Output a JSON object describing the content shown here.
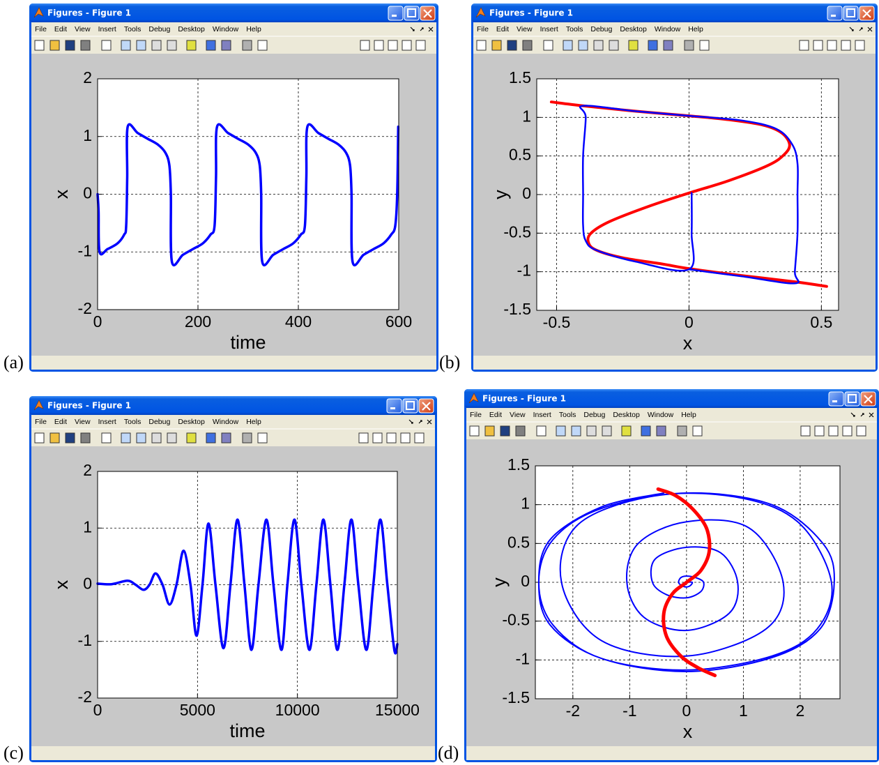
{
  "windows": [
    {
      "title": "Figures - Figure 1",
      "menu": [
        "File",
        "Edit",
        "View",
        "Insert",
        "Tools",
        "Debug",
        "Desktop",
        "Window",
        "Help"
      ],
      "label": "(a)"
    },
    {
      "title": "Figures - Figure 1",
      "menu": [
        "File",
        "Edit",
        "View",
        "Insert",
        "Tools",
        "Debug",
        "Desktop",
        "Window",
        "Help"
      ],
      "label": "(b)"
    },
    {
      "title": "Figures - Figure 1",
      "menu": [
        "File",
        "Edit",
        "View",
        "Insert",
        "Tools",
        "Debug",
        "Desktop",
        "Window",
        "Help"
      ],
      "label": "(c)"
    },
    {
      "title": "Figures - Figure 1",
      "menu": [
        "File",
        "Edit",
        "View",
        "Insert",
        "Tools",
        "Debug",
        "Desktop",
        "Window",
        "Help"
      ],
      "label": "(d)"
    }
  ],
  "chart_data": [
    {
      "type": "line",
      "xlabel": "time",
      "ylabel": "x",
      "x": [
        0,
        2,
        4,
        20,
        40,
        53,
        57,
        59,
        60,
        80,
        100,
        120,
        135,
        143,
        146,
        148,
        170,
        190,
        210,
        225,
        233,
        236,
        238,
        260,
        280,
        300,
        315,
        323,
        326,
        328,
        350,
        370,
        390,
        405,
        413,
        416,
        418,
        440,
        460,
        480,
        495,
        503,
        506,
        508,
        530,
        550,
        570,
        585,
        593,
        597,
        599
      ],
      "series": [
        {
          "color": "#0000ff",
          "linewidth": 3.5,
          "values": [
            0,
            -0.3,
            -1.0,
            -0.95,
            -0.85,
            -0.7,
            -0.55,
            0.3,
            1.17,
            1.06,
            0.96,
            0.86,
            0.72,
            0.5,
            0,
            -1.17,
            -1.05,
            -0.95,
            -0.85,
            -0.7,
            -0.55,
            0.3,
            1.17,
            1.06,
            0.96,
            0.86,
            0.72,
            0.5,
            0,
            -1.17,
            -1.05,
            -0.95,
            -0.85,
            -0.7,
            -0.55,
            0.3,
            1.17,
            1.06,
            0.96,
            0.86,
            0.72,
            0.5,
            0,
            -1.17,
            -1.05,
            -0.95,
            -0.85,
            -0.7,
            -0.55,
            0,
            1.17
          ]
        }
      ],
      "xlim": [
        0,
        600
      ],
      "ylim": [
        -2,
        2
      ],
      "xticks": [
        0,
        200,
        400,
        600
      ],
      "yticks": [
        -2,
        -1,
        0,
        1,
        2
      ],
      "grid": true
    },
    {
      "type": "line",
      "xlabel": "x",
      "ylabel": "y",
      "series": [
        {
          "color": "#ff0000",
          "linewidth": 4,
          "x": [
            -0.52,
            -0.4,
            -0.2,
            0,
            0.15,
            0.28,
            0.35,
            0.38,
            0.36,
            0.3,
            0.15,
            0,
            -0.15,
            -0.3,
            -0.37,
            -0.38,
            -0.35,
            -0.25,
            -0.1,
            0,
            0.2,
            0.4,
            0.52
          ],
          "values": [
            1.2,
            1.15,
            1.08,
            1.02,
            0.97,
            0.9,
            0.8,
            0.65,
            0.52,
            0.38,
            0.18,
            0.02,
            -0.15,
            -0.35,
            -0.5,
            -0.62,
            -0.72,
            -0.82,
            -0.9,
            -0.96,
            -1.05,
            -1.13,
            -1.19
          ]
        },
        {
          "color": "#0000ff",
          "linewidth": 2.5,
          "x": [
            0.01,
            0.01,
            0,
            -0.2,
            -0.35,
            -0.39,
            -0.4,
            -0.4,
            -0.4,
            -0.39,
            -0.4,
            -0.2,
            0,
            0.2,
            0.33,
            0.39,
            0.41,
            0.41,
            0.41,
            0.4,
            0.4,
            0.2,
            0
          ],
          "values": [
            0.02,
            -0.5,
            -0.97,
            -0.87,
            -0.72,
            -0.6,
            -0.4,
            0,
            0.5,
            1.0,
            1.15,
            1.08,
            1.02,
            0.96,
            0.85,
            0.65,
            0.4,
            0,
            -0.5,
            -1.0,
            -1.15,
            -1.06,
            -0.97
          ]
        }
      ],
      "xlim": [
        -0.575,
        0.565
      ],
      "ylim": [
        -1.5,
        1.5
      ],
      "xticks": [
        -0.5,
        0,
        0.5
      ],
      "yticks": [
        -1.5,
        -1,
        -0.5,
        0,
        0.5,
        1,
        1.5
      ],
      "grid": true
    },
    {
      "type": "line",
      "xlabel": "time",
      "ylabel": "x",
      "x": [
        0,
        700,
        1500,
        1900,
        2300,
        2600,
        2900,
        3250,
        3600,
        3950,
        4300,
        4650,
        4950,
        5250,
        5550,
        5900,
        6300,
        6650,
        7000,
        7350,
        7700,
        8050,
        8450,
        8800,
        9200,
        9500,
        9850,
        10200,
        10600,
        10950,
        11300,
        11650,
        12000,
        12350,
        12700,
        13050,
        13450,
        13800,
        14150,
        14500,
        14850,
        15000
      ],
      "series": [
        {
          "color": "#0000ff",
          "linewidth": 3.5,
          "values": [
            0.02,
            0.01,
            0.07,
            0,
            -0.09,
            0,
            0.2,
            0,
            -0.35,
            0,
            0.6,
            0,
            -0.9,
            0,
            1.08,
            0,
            -1.12,
            0,
            1.15,
            0,
            -1.15,
            0,
            1.15,
            0,
            -1.15,
            0,
            1.15,
            0,
            -1.15,
            0,
            1.15,
            0,
            -1.15,
            0,
            1.15,
            0,
            -1.15,
            0,
            1.15,
            0,
            -1.15,
            -1.05
          ]
        }
      ],
      "xlim": [
        0,
        15000
      ],
      "ylim": [
        -2,
        2
      ],
      "xticks": [
        0,
        5000,
        10000,
        15000
      ],
      "yticks": [
        -2,
        -1,
        0,
        1,
        2
      ],
      "grid": true
    },
    {
      "type": "line",
      "xlabel": "x",
      "ylabel": "y",
      "series": [
        {
          "color": "#0000ff",
          "linewidth": 2,
          "x": [
            0,
            0.1,
            0.07,
            0,
            -0.09,
            -0.14,
            -0.1,
            0,
            0.16,
            0.3,
            0.25,
            0,
            -0.35,
            -0.6,
            -0.55,
            0,
            0.6,
            0.9,
            0.75,
            0,
            -0.75,
            -1.05,
            -0.85,
            0,
            1.1,
            1.7,
            1.4,
            0,
            -1.5,
            -2.2,
            -1.9,
            -0.5,
            1.0,
            2.0,
            2.55,
            2.3,
            1.5,
            0,
            -1.5,
            -2.35,
            -2.6,
            -2.35,
            -1.5,
            0,
            1.5,
            2.4,
            2.6,
            2.35,
            1.5,
            0,
            -1.5,
            -2.4,
            -2.6,
            -2.4,
            -1.5,
            -0.4
          ],
          "values": [
            0,
            0,
            -0.04,
            -0.06,
            -0.04,
            0,
            0.06,
            0.08,
            0.06,
            0,
            -0.12,
            -0.2,
            -0.16,
            0,
            0.3,
            0.45,
            0.38,
            0,
            -0.4,
            -0.62,
            -0.45,
            0,
            0.5,
            0.78,
            0.7,
            0,
            -0.6,
            -0.95,
            -0.75,
            0,
            0.75,
            1.12,
            1.08,
            0.75,
            0,
            -0.6,
            -0.95,
            -1.13,
            -0.98,
            -0.55,
            0,
            0.55,
            0.95,
            1.15,
            1.0,
            0.5,
            0,
            -0.6,
            -0.97,
            -1.15,
            -0.98,
            -0.55,
            0,
            0.55,
            0.97,
            1.15
          ]
        },
        {
          "color": "#ff0000",
          "linewidth": 5,
          "x": [
            -0.5,
            -0.2,
            0.1,
            0.35,
            0.4,
            0.25,
            0,
            -0.25,
            -0.4,
            -0.35,
            -0.1,
            0.2,
            0.5
          ],
          "values": [
            1.2,
            1.12,
            0.95,
            0.7,
            0.4,
            0.15,
            0,
            -0.15,
            -0.4,
            -0.7,
            -0.95,
            -1.1,
            -1.2
          ]
        }
      ],
      "xlim": [
        -2.66,
        2.7
      ],
      "ylim": [
        -1.5,
        1.5
      ],
      "xticks": [
        -2,
        -1,
        0,
        1,
        2
      ],
      "yticks": [
        -1.5,
        -1,
        -0.5,
        0,
        0.5,
        1,
        1.5
      ],
      "grid": true
    }
  ]
}
